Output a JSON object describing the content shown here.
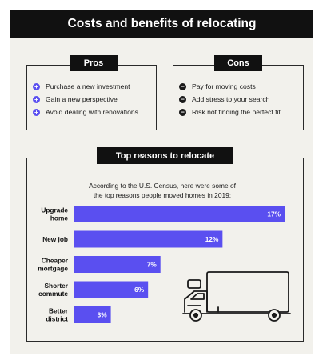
{
  "title": "Costs and benefits of relocating",
  "pros": {
    "heading": "Pros",
    "icon": "plus-circle-icon",
    "items": [
      "Purchase a new investment",
      "Gain a new perspective",
      "Avoid dealing with renovations"
    ]
  },
  "cons": {
    "heading": "Cons",
    "icon": "minus-circle-icon",
    "items": [
      "Pay for moving costs",
      "Add stress to your search",
      "Risk not finding the perfect fit"
    ]
  },
  "reasons": {
    "heading": "Top reasons to relocate",
    "intro_line1": "According to the U.S. Census, here were some of",
    "intro_line2": "the top reasons people moved homes in 2019:",
    "illustration": "moving-truck-icon"
  },
  "colors": {
    "bar": "#5a4ff0",
    "header": "#111111",
    "background": "#f2f1ec"
  },
  "chart_data": {
    "type": "bar",
    "orientation": "horizontal",
    "categories": [
      [
        "Upgrade",
        "home"
      ],
      [
        "New job"
      ],
      [
        "Cheaper",
        "mortgage"
      ],
      [
        "Shorter",
        "commute"
      ],
      [
        "Better",
        "district"
      ]
    ],
    "values": [
      17,
      12,
      7,
      6,
      3
    ],
    "value_labels": [
      "17%",
      "12%",
      "7%",
      "6%",
      "3%"
    ],
    "unit": "%"
  }
}
